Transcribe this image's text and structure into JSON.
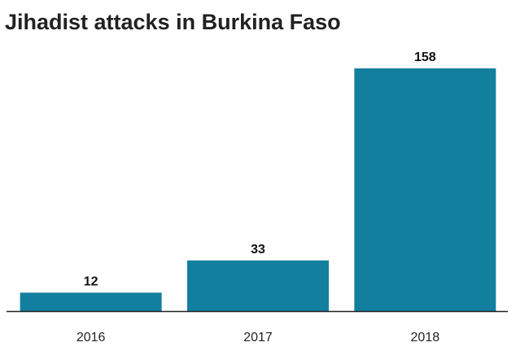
{
  "chart_data": {
    "type": "bar",
    "title": "Jihadist attacks in Burkina Faso",
    "categories": [
      "2016",
      "2017",
      "2018"
    ],
    "values": [
      12,
      33,
      158
    ],
    "ylim": [
      0,
      158
    ],
    "bar_color": "#137f9f",
    "axis_color": "#222222",
    "grid": false,
    "data_labels": true
  }
}
